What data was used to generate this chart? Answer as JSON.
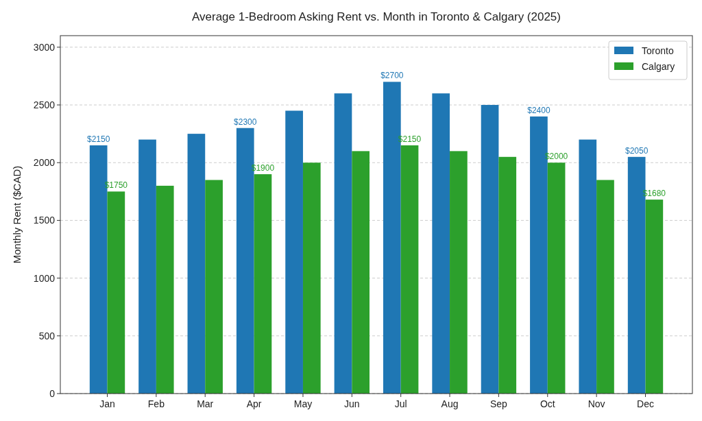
{
  "chart_data": {
    "type": "bar",
    "title": "Average 1-Bedroom Asking Rent vs. Month in Toronto & Calgary (2025)",
    "ylabel": "Monthly Rent ($CAD)",
    "categories": [
      "Jan",
      "Feb",
      "Mar",
      "Apr",
      "May",
      "Jun",
      "Jul",
      "Aug",
      "Sep",
      "Oct",
      "Nov",
      "Dec"
    ],
    "series": [
      {
        "name": "Toronto",
        "color": "#1f77b4",
        "values": [
          2150,
          2200,
          2250,
          2300,
          2450,
          2600,
          2700,
          2600,
          2500,
          2400,
          2200,
          2050
        ],
        "value_labels": [
          "$2150",
          null,
          null,
          "$2300",
          null,
          null,
          "$2700",
          null,
          null,
          "$2400",
          null,
          "$2050"
        ]
      },
      {
        "name": "Calgary",
        "color": "#2ca02c",
        "values": [
          1750,
          1800,
          1850,
          1900,
          2000,
          2100,
          2150,
          2100,
          2050,
          2000,
          1850,
          1680
        ],
        "value_labels": [
          "$1750",
          null,
          null,
          "$1900",
          null,
          null,
          "$2150",
          null,
          null,
          "$2000",
          null,
          "$1680"
        ]
      }
    ],
    "ylim": [
      0,
      3100
    ],
    "yticks": [
      0,
      500,
      1000,
      1500,
      2000,
      2500,
      3000
    ],
    "grid": "y",
    "legend": "top right"
  }
}
